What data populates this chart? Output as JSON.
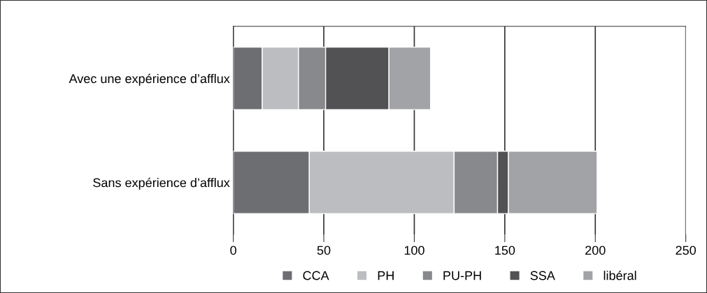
{
  "chart_data": {
    "type": "bar",
    "orientation": "horizontal",
    "stacked": true,
    "categories": [
      "Avec une expérience d’afflux",
      "Sans expérience d’afflux"
    ],
    "series": [
      {
        "name": "CCA",
        "color": "#6d6e71",
        "values": [
          16,
          42
        ]
      },
      {
        "name": "PH",
        "color": "#bcbdc0",
        "values": [
          20,
          80
        ]
      },
      {
        "name": "PU-PH",
        "color": "#88898c",
        "values": [
          15,
          24
        ]
      },
      {
        "name": "SSA",
        "color": "#525254",
        "values": [
          35,
          6
        ]
      },
      {
        "name": "libéral",
        "color": "#a2a3a6",
        "values": [
          23,
          49
        ]
      }
    ],
    "xlim": [
      0,
      250
    ],
    "xticks": [
      0,
      50,
      100,
      150,
      200,
      250
    ],
    "grid": "x",
    "legend": "bottom"
  }
}
